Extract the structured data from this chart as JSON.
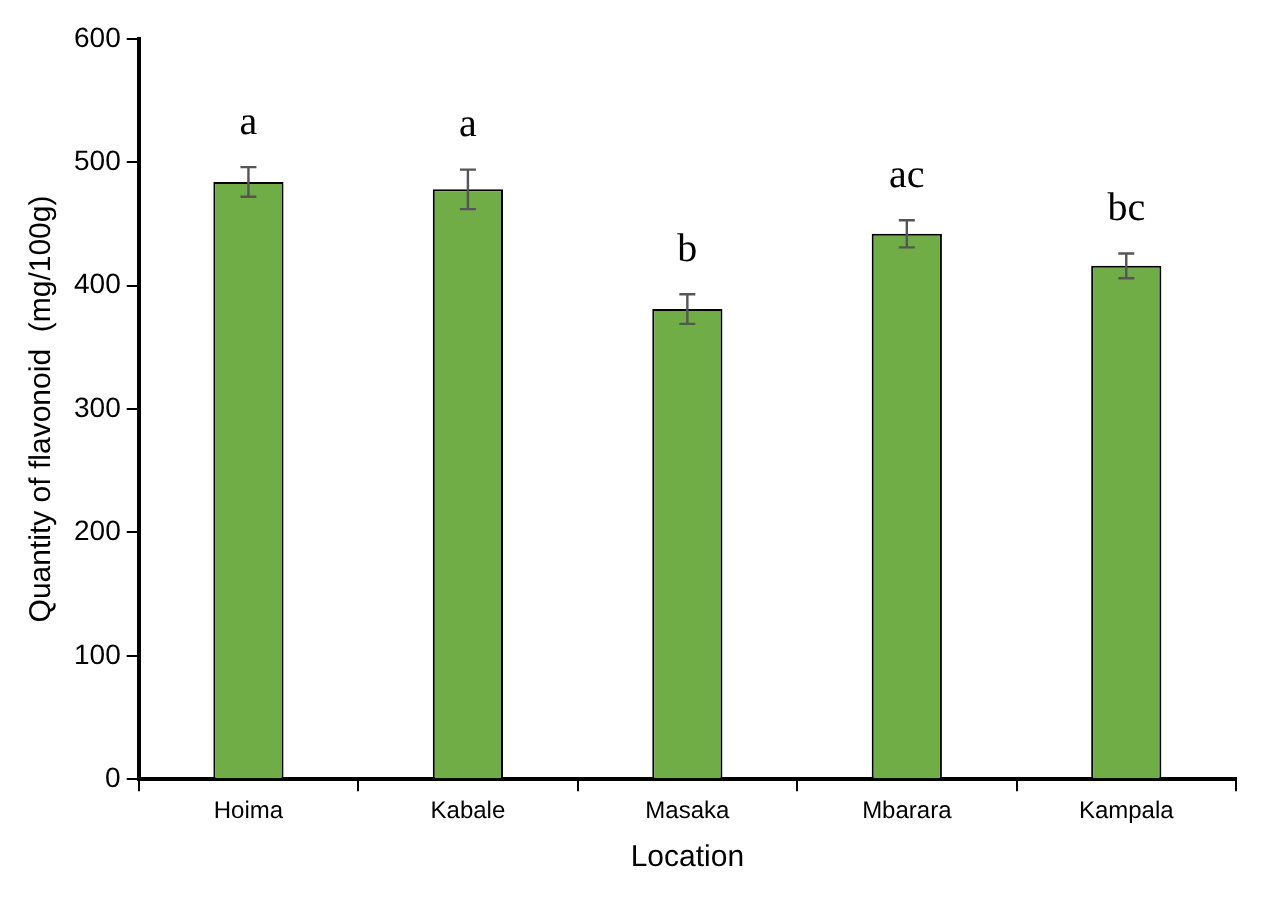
{
  "chart_data": {
    "type": "bar",
    "xlabel": "Location",
    "ylabel": "Quantity of flavonoid  (mg/100g)",
    "categories": [
      "Hoima",
      "Kabale",
      "Masaka",
      "Mbarara",
      "Kampala"
    ],
    "values": [
      484,
      478,
      381,
      442,
      416
    ],
    "errors": [
      12,
      16,
      12,
      11,
      10
    ],
    "color": "#70ad47",
    "ylim": [
      0,
      600
    ],
    "yticks": [
      0,
      100,
      200,
      300,
      400,
      500,
      600
    ],
    "grid": false,
    "legend": false,
    "annotations": [
      "a",
      "a",
      "b",
      "ac",
      "bc"
    ]
  }
}
